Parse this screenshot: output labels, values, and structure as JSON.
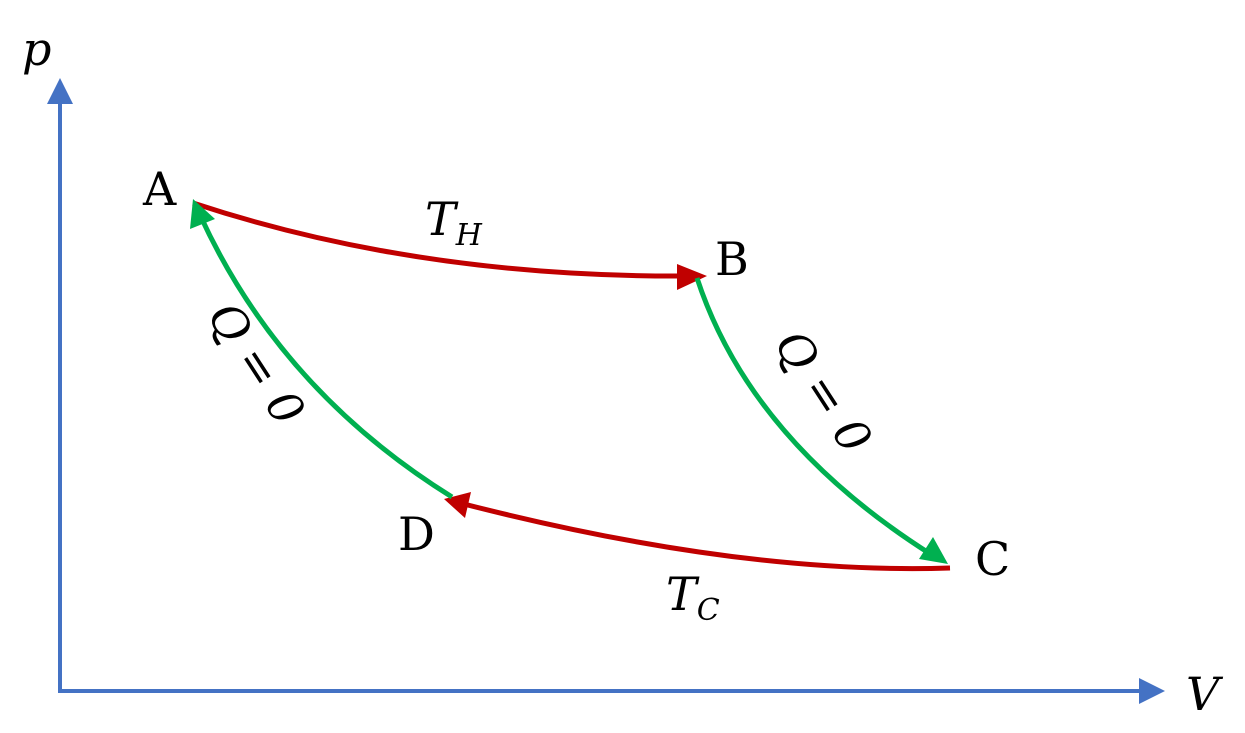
{
  "axes": {
    "y_label": "p",
    "x_label": "V",
    "color": "#4472C4"
  },
  "points": {
    "a": "A",
    "b": "B",
    "c": "C",
    "d": "D"
  },
  "isotherms": {
    "hot": {
      "main": "T",
      "sub": "H"
    },
    "cold": {
      "main": "T",
      "sub": "C"
    },
    "color": "#C00000"
  },
  "adiabats": {
    "left": "Q = 0",
    "right": "Q = 0",
    "color": "#00B050"
  }
}
